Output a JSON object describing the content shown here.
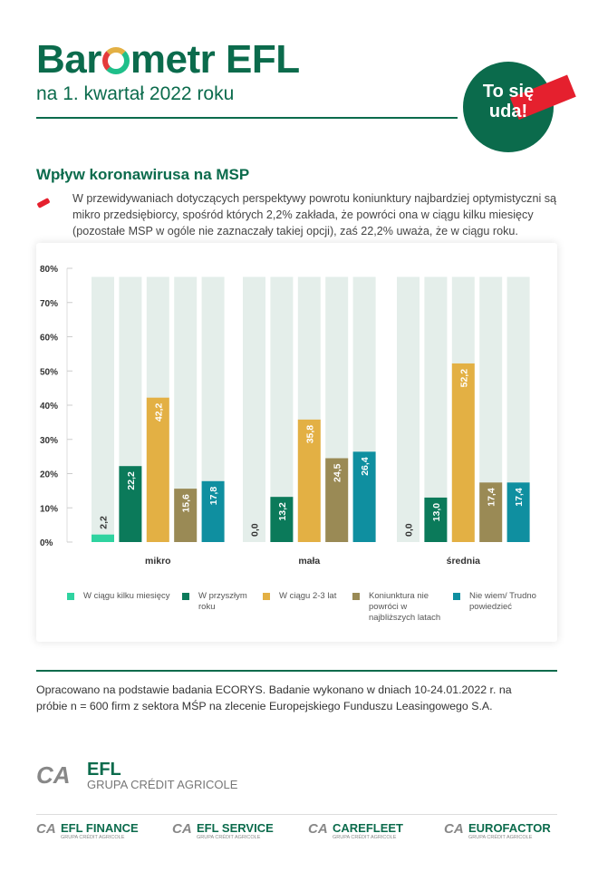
{
  "header": {
    "title_pre": "Bar",
    "title_post": "metr EFL",
    "subtitle": "na 1. kwartał 2022 roku",
    "badge": "To się uda!"
  },
  "section": {
    "title": "Wpływ koronawirusa na MSP",
    "intro": "W przewidywaniach dotyczących perspektywy powrotu koniunktury najbardziej optymistyczni są mikro przedsiębiorcy, spośród których 2,2% zakłada, że powróci ona w ciągu kilku miesięcy (pozostałe MSP w ogóle nie zaznaczały takiej opcji), zaś 22,2% uważa, że w ciągu roku."
  },
  "chart_data": {
    "type": "bar",
    "categories": [
      "mikro",
      "mała",
      "średnia"
    ],
    "ylim": [
      0,
      80
    ],
    "yticks": [
      "0%",
      "10%",
      "20%",
      "30%",
      "40%",
      "50%",
      "60%",
      "70%",
      "80%"
    ],
    "legend_position": "bottom",
    "series": [
      {
        "name": "W ciągu kilku miesięcy",
        "color": "#2fd3a0",
        "values": [
          2.2,
          0.0,
          0.0
        ],
        "labels": [
          "2,2",
          "0,0",
          "0,0"
        ]
      },
      {
        "name": "W przyszłym roku",
        "color": "#0b7a5a",
        "values": [
          22.2,
          13.2,
          13.0
        ],
        "labels": [
          "22,2",
          "13,2",
          "13,0"
        ]
      },
      {
        "name": "W ciągu 2-3 lat",
        "color": "#e3b044",
        "values": [
          42.2,
          35.8,
          52.2
        ],
        "labels": [
          "42,2",
          "35,8",
          "52,2"
        ]
      },
      {
        "name": "Koniunktura nie powróci w najbliższych latach",
        "color": "#9a8a55",
        "values": [
          15.6,
          24.5,
          17.4
        ],
        "labels": [
          "15,6",
          "24,5",
          "17,4"
        ]
      },
      {
        "name": "Nie wiem/ Trudno powiedzieć",
        "color": "#0f8fa0",
        "values": [
          17.8,
          26.4,
          17.4
        ],
        "labels": [
          "17,8",
          "26,4",
          "17,4"
        ]
      }
    ],
    "track_color": "#e4eeea"
  },
  "legend": [
    "W ciągu kilku miesięcy",
    "W przyszłym roku",
    "W ciągu 2-3 lat",
    "Koniunktura nie powróci w najbliższych latach",
    "Nie wiem/ Trudno powiedzieć"
  ],
  "source": "Opracowano na podstawie badania ECORYS. Badanie wykonano w dniach 10-24.01.2022 r. na próbie n = 600 firm z sektora MŚP na zlecenie Europejskiego Funduszu Leasingowego S.A.",
  "footer": {
    "main": {
      "name": "EFL",
      "group": "GRUPA CRÉDIT AGRICOLE"
    },
    "brands": [
      {
        "name": "EFL FINANCE",
        "group": "GRUPA CRÉDIT AGRICOLE"
      },
      {
        "name": "EFL SERVICE",
        "group": "GRUPA CRÉDIT AGRICOLE"
      },
      {
        "name": "CAREFLEET",
        "group": "GRUPA CRÉDIT AGRICOLE"
      },
      {
        "name": "EUROFACTOR",
        "group": "GRUPA CRÉDIT AGRICOLE"
      }
    ]
  },
  "colors": {
    "brand": "#0b6b4c",
    "accent": "#e5202e"
  }
}
